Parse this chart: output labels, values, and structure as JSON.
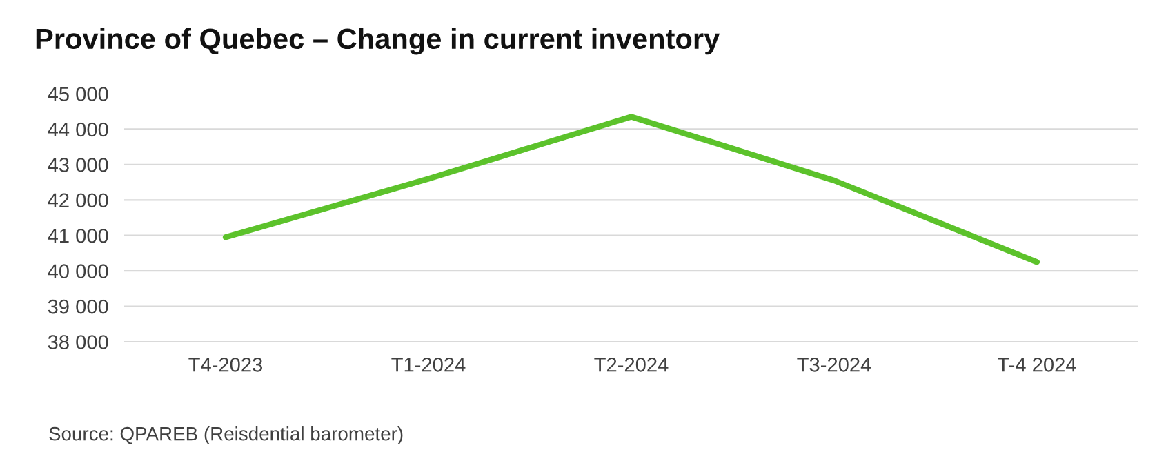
{
  "chart_data": {
    "type": "line",
    "title": "Province of Quebec – Change in current inventory",
    "categories": [
      "T4-2023",
      "T1-2024",
      "T2-2024",
      "T3-2024",
      "T-4 2024"
    ],
    "series": [
      {
        "color": "#5cc22b",
        "values": [
          40950,
          42600,
          44350,
          42550,
          40250
        ]
      }
    ],
    "ylim": [
      38000,
      45000
    ],
    "yticks": [
      {
        "value": 38000,
        "label": "38 000"
      },
      {
        "value": 39000,
        "label": "39 000"
      },
      {
        "value": 40000,
        "label": "40 000"
      },
      {
        "value": 41000,
        "label": "41 000"
      },
      {
        "value": 42000,
        "label": "42 000"
      },
      {
        "value": 43000,
        "label": "43 000"
      },
      {
        "value": 44000,
        "label": "44 000"
      },
      {
        "value": 45000,
        "label": "45 000"
      }
    ],
    "grid": "y",
    "marker": "none",
    "line_style": "solid",
    "annotations": [
      "Source: QPAREB (Reisdential barometer)"
    ]
  }
}
